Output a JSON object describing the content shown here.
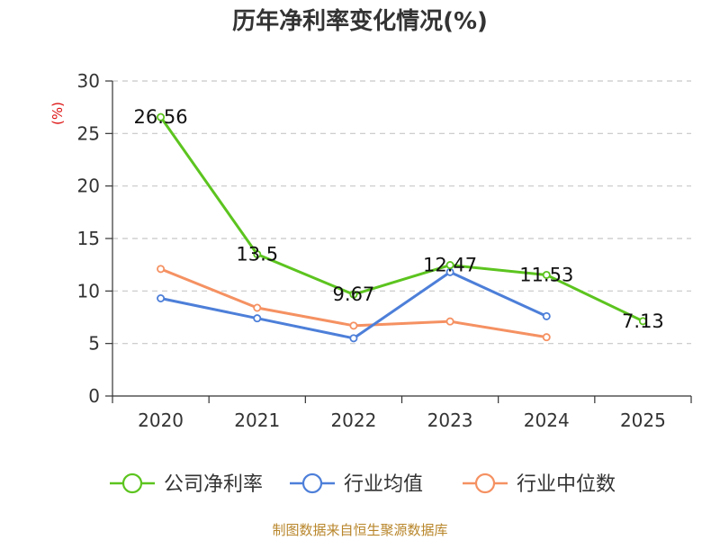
{
  "chart_data": {
    "type": "line",
    "title": "历年净利率变化情况(%)",
    "ylabel": "(%)",
    "xlabel": "",
    "categories": [
      "2020",
      "2021",
      "2022",
      "2023",
      "2024",
      "2025"
    ],
    "ylim": [
      0,
      30
    ],
    "yticks": [
      0,
      5,
      10,
      15,
      20,
      25,
      30
    ],
    "grid": true,
    "legend_position": "bottom",
    "series": [
      {
        "name": "公司净利率",
        "color": "#5cc41f",
        "values": [
          26.56,
          13.5,
          9.67,
          12.47,
          11.53,
          7.13
        ],
        "labels": [
          "26.56",
          "13.5",
          "9.67",
          "12.47",
          "11.53",
          "7.13"
        ]
      },
      {
        "name": "行业均值",
        "color": "#4d7fd9",
        "values": [
          9.3,
          7.4,
          5.5,
          11.8,
          7.6,
          null
        ]
      },
      {
        "name": "行业中位数",
        "color": "#f59162",
        "values": [
          12.1,
          8.4,
          6.7,
          7.1,
          5.6,
          null
        ]
      }
    ],
    "source": "制图数据来自恒生聚源数据库"
  }
}
